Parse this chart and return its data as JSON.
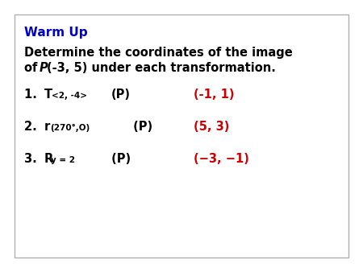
{
  "background_color": "#ffffff",
  "border_color": "#b0b0b0",
  "title": "Warm Up",
  "title_color": "#0000cc",
  "text_color": "#000000",
  "answer_color": "#cc0000",
  "subtitle_line1": "Determine the coordinates of the image",
  "subtitle_line2_of": "of ",
  "subtitle_line2_P": "P",
  "subtitle_line2_rest": "(-3, 5) under each transformation.",
  "items": [
    {
      "number": "1. ",
      "prefix": "T",
      "sub": "<2, -4>",
      "suffix": "(P)",
      "answer": "(-1, 1)"
    },
    {
      "number": "2. ",
      "prefix": "r",
      "sub": "(270°,O)",
      "suffix": " (P)",
      "answer": "(5, 3)"
    },
    {
      "number": "3. ",
      "prefix": "R",
      "sub": "y = 2",
      "suffix": " (P)",
      "answer": "(−3, −1)"
    }
  ],
  "main_fs": 10.5,
  "sub_fs": 7.5,
  "title_fs": 11,
  "answer_fs": 10.5,
  "border_lw": 1.0
}
